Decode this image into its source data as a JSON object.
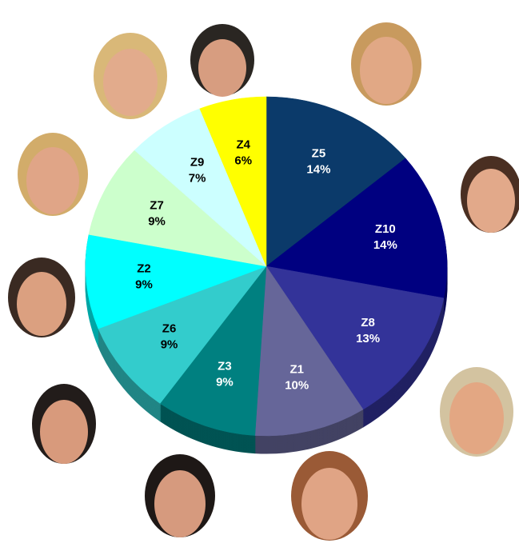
{
  "chart_data": {
    "type": "pie",
    "categories": [
      "Z5",
      "Z10",
      "Z8",
      "Z1",
      "Z3",
      "Z6",
      "Z2",
      "Z7",
      "Z9",
      "Z4"
    ],
    "values": [
      14,
      14,
      13,
      10,
      9,
      9,
      9,
      9,
      7,
      6
    ],
    "value_labels": [
      "14%",
      "14%",
      "13%",
      "10%",
      "9%",
      "9%",
      "9%",
      "9%",
      "7%",
      "6%"
    ],
    "colors": [
      "#0b3a6a",
      "#000080",
      "#333399",
      "#666699",
      "#008080",
      "#33cccc",
      "#00ffff",
      "#ccffcc",
      "#ccffff",
      "#ffff00"
    ]
  }
}
